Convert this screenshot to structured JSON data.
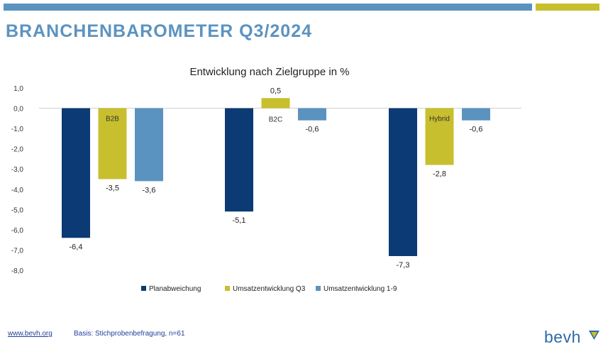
{
  "page": {
    "title": "BRANCHENBAROMETER Q3/2024",
    "footer_link": "www.bevh.org",
    "footer_basis": "Basis: Stichprobenbefragung, n=61",
    "logo_text": "bevh"
  },
  "colors": {
    "planabweichung": "#0b3a74",
    "umsatz_q3": "#c8bf2e",
    "umsatz_1_9": "#5b93c0",
    "title": "#5b93c0",
    "gold": "#c8bf2e"
  },
  "chart_data": {
    "type": "bar",
    "title": "Entwicklung nach Zielgruppe in %",
    "categories": [
      "B2B",
      "B2C",
      "Hybrid"
    ],
    "series": [
      {
        "name": "Planabweichung",
        "values": [
          -6.4,
          -5.1,
          -7.3
        ],
        "labels": [
          "-6,4",
          "-5,1",
          "-7,3"
        ]
      },
      {
        "name": "Umsatzentwicklung Q3",
        "values": [
          -3.5,
          0.5,
          -2.8
        ],
        "labels": [
          "-3,5",
          "0,5",
          "-2,8"
        ]
      },
      {
        "name": "Umsatzentwicklung 1-9",
        "values": [
          -3.6,
          -0.6,
          -0.6
        ],
        "labels": [
          "-3,6",
          "-0,6",
          "-0,6"
        ]
      }
    ],
    "ylim": [
      -8,
      1
    ],
    "yticks": [
      "1,0",
      "0,0",
      "-1,0",
      "-2,0",
      "-3,0",
      "-4,0",
      "-5,0",
      "-6,0",
      "-7,0",
      "-8,0"
    ],
    "legend": "bottom",
    "grid": false
  }
}
